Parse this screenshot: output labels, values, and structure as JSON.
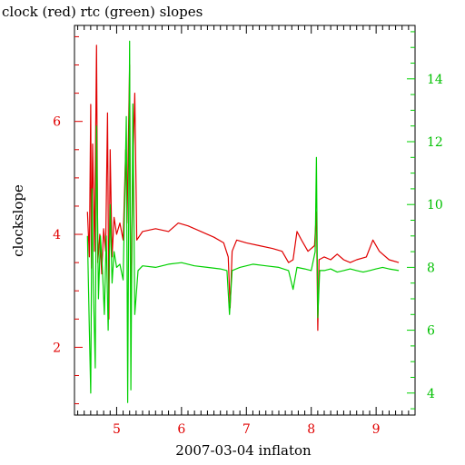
{
  "chart_data": {
    "type": "line",
    "title": "clock (red) rtc (green) slopes",
    "xlabel": "2007-03-04 inflaton",
    "ylabel": "clockslope",
    "xlim": [
      4.35,
      9.6
    ],
    "ylim_left": [
      0.8,
      7.7
    ],
    "ylim_right": [
      3.3,
      15.7
    ],
    "x_ticks": [
      5,
      6,
      7,
      8,
      9
    ],
    "y_left_ticks": [
      2,
      4,
      6
    ],
    "y_right_ticks": [
      4,
      6,
      8,
      10,
      12,
      14
    ],
    "grid": false,
    "colors": {
      "clock": "#e00000",
      "rtc": "#00d000",
      "axis": "#000000"
    },
    "series": [
      {
        "name": "clock",
        "axis": "left",
        "color": "#e00000",
        "points": [
          [
            4.55,
            4.4
          ],
          [
            4.58,
            3.6
          ],
          [
            4.6,
            6.3
          ],
          [
            4.61,
            3.4
          ],
          [
            4.63,
            5.6
          ],
          [
            4.66,
            3.7
          ],
          [
            4.69,
            7.35
          ],
          [
            4.71,
            3.5
          ],
          [
            4.74,
            4.0
          ],
          [
            4.77,
            3.3
          ],
          [
            4.8,
            4.1
          ],
          [
            4.83,
            3.7
          ],
          [
            4.86,
            6.15
          ],
          [
            4.88,
            2.5
          ],
          [
            4.9,
            5.5
          ],
          [
            4.93,
            3.6
          ],
          [
            4.96,
            4.3
          ],
          [
            5.0,
            4.0
          ],
          [
            5.05,
            4.2
          ],
          [
            5.1,
            3.9
          ],
          [
            5.14,
            5.5
          ],
          [
            5.16,
            4.2
          ],
          [
            5.2,
            7.0
          ],
          [
            5.22,
            2.4
          ],
          [
            5.25,
            5.2
          ],
          [
            5.28,
            6.5
          ],
          [
            5.31,
            3.9
          ],
          [
            5.4,
            4.05
          ],
          [
            5.6,
            4.1
          ],
          [
            5.8,
            4.05
          ],
          [
            5.95,
            4.2
          ],
          [
            6.1,
            4.15
          ],
          [
            6.3,
            4.05
          ],
          [
            6.5,
            3.95
          ],
          [
            6.65,
            3.85
          ],
          [
            6.72,
            3.6
          ],
          [
            6.75,
            2.7
          ],
          [
            6.78,
            3.7
          ],
          [
            6.85,
            3.9
          ],
          [
            7.0,
            3.85
          ],
          [
            7.2,
            3.8
          ],
          [
            7.4,
            3.75
          ],
          [
            7.55,
            3.7
          ],
          [
            7.65,
            3.5
          ],
          [
            7.72,
            3.55
          ],
          [
            7.78,
            4.05
          ],
          [
            7.85,
            3.9
          ],
          [
            7.95,
            3.7
          ],
          [
            8.05,
            3.8
          ],
          [
            8.08,
            4.4
          ],
          [
            8.1,
            2.3
          ],
          [
            8.12,
            3.55
          ],
          [
            8.2,
            3.6
          ],
          [
            8.3,
            3.55
          ],
          [
            8.4,
            3.65
          ],
          [
            8.5,
            3.55
          ],
          [
            8.6,
            3.5
          ],
          [
            8.7,
            3.55
          ],
          [
            8.85,
            3.6
          ],
          [
            8.95,
            3.9
          ],
          [
            9.05,
            3.7
          ],
          [
            9.2,
            3.55
          ],
          [
            9.35,
            3.5
          ]
        ]
      },
      {
        "name": "rtc",
        "axis": "right",
        "color": "#00d000",
        "points": [
          [
            4.55,
            9.0
          ],
          [
            4.58,
            6.0
          ],
          [
            4.6,
            4.0
          ],
          [
            4.62,
            10.5
          ],
          [
            4.64,
            7.5
          ],
          [
            4.67,
            4.8
          ],
          [
            4.69,
            12.5
          ],
          [
            4.72,
            7.0
          ],
          [
            4.75,
            9.0
          ],
          [
            4.78,
            8.0
          ],
          [
            4.81,
            6.5
          ],
          [
            4.84,
            9.0
          ],
          [
            4.87,
            6.0
          ],
          [
            4.9,
            10.0
          ],
          [
            4.93,
            7.5
          ],
          [
            4.96,
            8.5
          ],
          [
            5.0,
            8.0
          ],
          [
            5.05,
            8.1
          ],
          [
            5.1,
            7.6
          ],
          [
            5.15,
            12.8
          ],
          [
            5.17,
            3.7
          ],
          [
            5.2,
            15.2
          ],
          [
            5.22,
            4.1
          ],
          [
            5.25,
            13.2
          ],
          [
            5.28,
            6.5
          ],
          [
            5.33,
            7.9
          ],
          [
            5.4,
            8.05
          ],
          [
            5.6,
            8.0
          ],
          [
            5.8,
            8.1
          ],
          [
            6.0,
            8.15
          ],
          [
            6.2,
            8.05
          ],
          [
            6.4,
            8.0
          ],
          [
            6.6,
            7.95
          ],
          [
            6.7,
            7.9
          ],
          [
            6.74,
            6.5
          ],
          [
            6.78,
            7.9
          ],
          [
            6.9,
            8.0
          ],
          [
            7.1,
            8.1
          ],
          [
            7.3,
            8.05
          ],
          [
            7.5,
            8.0
          ],
          [
            7.65,
            7.9
          ],
          [
            7.72,
            7.3
          ],
          [
            7.78,
            8.0
          ],
          [
            7.9,
            7.95
          ],
          [
            8.0,
            7.9
          ],
          [
            8.06,
            8.5
          ],
          [
            8.08,
            11.5
          ],
          [
            8.1,
            6.4
          ],
          [
            8.13,
            7.9
          ],
          [
            8.2,
            7.9
          ],
          [
            8.3,
            7.95
          ],
          [
            8.4,
            7.85
          ],
          [
            8.5,
            7.9
          ],
          [
            8.6,
            7.95
          ],
          [
            8.7,
            7.9
          ],
          [
            8.8,
            7.85
          ],
          [
            8.9,
            7.9
          ],
          [
            9.0,
            7.95
          ],
          [
            9.1,
            8.0
          ],
          [
            9.2,
            7.95
          ],
          [
            9.35,
            7.9
          ]
        ]
      }
    ]
  }
}
